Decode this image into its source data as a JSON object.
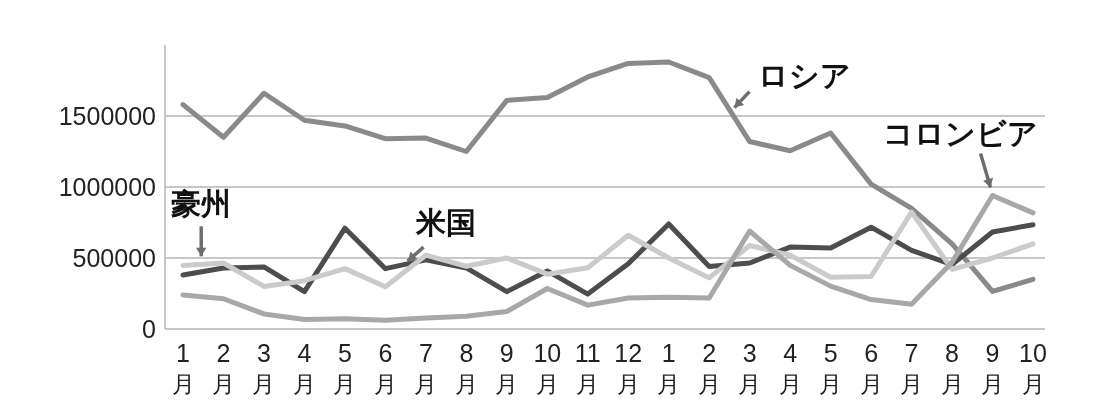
{
  "chart_data": {
    "type": "line",
    "categories": [
      "1月",
      "2月",
      "3月",
      "4月",
      "5月",
      "6月",
      "7月",
      "8月",
      "9月",
      "10月",
      "11月",
      "12月",
      "1月",
      "2月",
      "3月",
      "4月",
      "5月",
      "6月",
      "7月",
      "8月",
      "9月",
      "10月"
    ],
    "series": [
      {
        "name": "ロシア",
        "color": "#8a8a8a",
        "values": [
          1580000,
          1350000,
          1660000,
          1470000,
          1430000,
          1340000,
          1345000,
          1250000,
          1610000,
          1630000,
          1775000,
          1870000,
          1880000,
          1770000,
          1320000,
          1255000,
          1380000,
          1020000,
          850000,
          600000,
          265000,
          350000
        ]
      },
      {
        "name": "米国",
        "color": "#4d4d4d",
        "values": [
          380000,
          430000,
          437000,
          263000,
          710000,
          425000,
          487000,
          430000,
          263000,
          409000,
          246000,
          460000,
          740000,
          440000,
          465000,
          577000,
          571000,
          717000,
          554000,
          454000,
          683000,
          734000
        ]
      },
      {
        "name": "豪州",
        "color": "#cbcbcb",
        "values": [
          448000,
          465000,
          300000,
          340000,
          425000,
          297000,
          520000,
          442000,
          500000,
          386000,
          431000,
          660000,
          500000,
          360000,
          588000,
          520000,
          364000,
          370000,
          823000,
          420000,
          500000,
          600000
        ]
      },
      {
        "name": "コロンビア",
        "color": "#a8a8a8",
        "values": [
          240000,
          213000,
          106000,
          67000,
          73000,
          62000,
          78000,
          90000,
          123000,
          285000,
          168000,
          218000,
          224000,
          218000,
          690000,
          448000,
          302000,
          207000,
          174000,
          470000,
          940000,
          818000
        ]
      }
    ],
    "ylim": [
      0,
      2000000
    ],
    "yticks": [
      0,
      500000,
      1000000,
      1500000
    ],
    "grid": "y",
    "line_style": "solid"
  }
}
